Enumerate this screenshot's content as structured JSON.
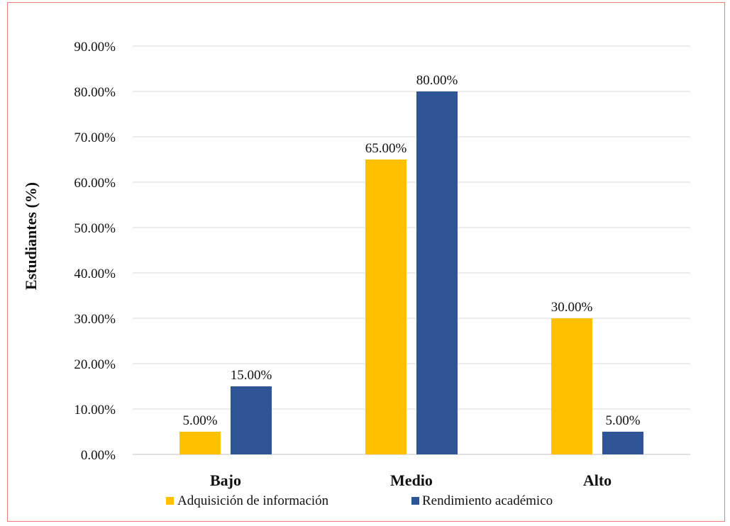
{
  "chart_data": {
    "type": "bar",
    "title": "",
    "xlabel": "",
    "ylabel": "Estudiantes (%)",
    "ylim": [
      0,
      90
    ],
    "ytick_step": 10,
    "ytick_format": "percent_2dp",
    "grid": "horizontal",
    "legend_position": "bottom",
    "categories": [
      "Bajo",
      "Medio",
      "Alto"
    ],
    "series": [
      {
        "name": "Adquisición de información",
        "color": "#FFC000",
        "values": [
          5,
          65,
          30
        ],
        "labels": [
          "5.00%",
          "65.00%",
          "30.00%"
        ]
      },
      {
        "name": "Rendimiento académico",
        "color": "#2F5597",
        "values": [
          15,
          80,
          5
        ],
        "labels": [
          "15.00%",
          "80.00%",
          "5.00%"
        ]
      }
    ],
    "yticks": [
      "0.00%",
      "10.00%",
      "20.00%",
      "30.00%",
      "40.00%",
      "50.00%",
      "60.00%",
      "70.00%",
      "80.00%",
      "90.00%"
    ]
  }
}
